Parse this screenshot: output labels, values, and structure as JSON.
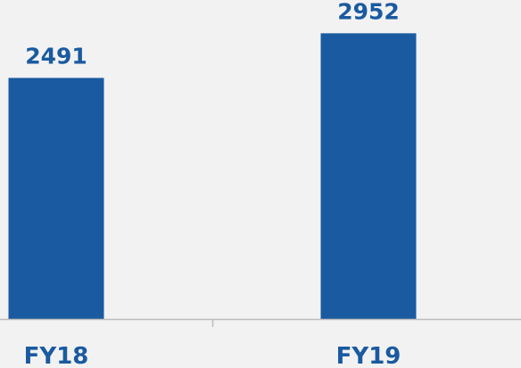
{
  "chart_data": {
    "type": "bar",
    "categories": [
      "FY18",
      "FY19"
    ],
    "values": [
      2491,
      2952
    ],
    "title": "",
    "xlabel": "",
    "ylabel": "",
    "ylim": [
      0,
      3250
    ],
    "grid": false,
    "data_labels": [
      "2491",
      "2952"
    ],
    "colors": {
      "bar": "#1a5aa0",
      "text": "#1a5aa0",
      "axis": "#bdbdbd",
      "background": "#f2f2f2"
    }
  }
}
